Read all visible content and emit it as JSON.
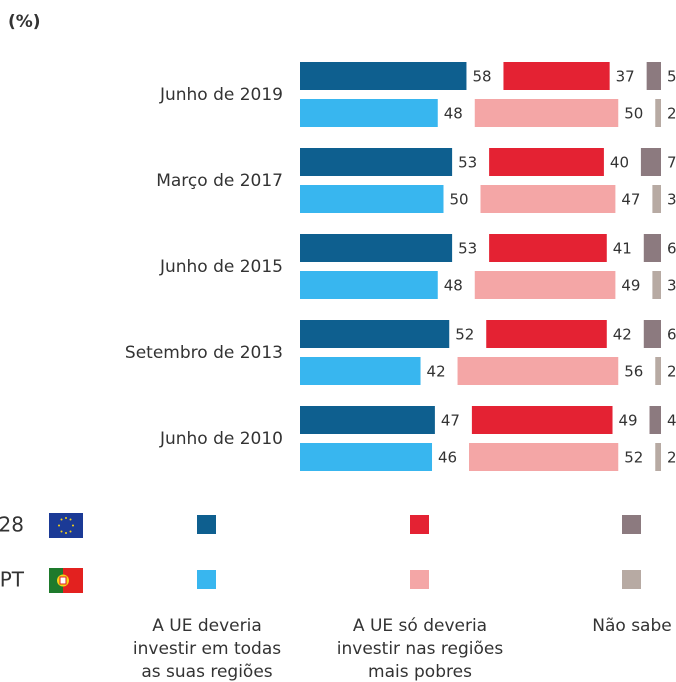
{
  "chart_data": {
    "type": "bar",
    "unit_label": "(%)",
    "categories": [
      "Junho de 2019",
      "Março de 2017",
      "Junho de 2015",
      "Setembro de 2013",
      "Junho de 2010"
    ],
    "groups": [
      {
        "name": "28",
        "series": [
          {
            "color": "#0e5f8f",
            "values": [
              58,
              53,
              53,
              52,
              47
            ]
          },
          {
            "color": "#e42233",
            "values": [
              37,
              40,
              41,
              42,
              49
            ]
          },
          {
            "color": "#8c7a7f",
            "values": [
              5,
              7,
              6,
              6,
              4
            ]
          }
        ]
      },
      {
        "name": "PT",
        "series": [
          {
            "color": "#38b6ef",
            "values": [
              48,
              50,
              48,
              42,
              46
            ]
          },
          {
            "color": "#f4a6a6",
            "values": [
              50,
              47,
              49,
              56,
              52
            ]
          },
          {
            "color": "#b7aaa3",
            "values": [
              2,
              3,
              3,
              2,
              2
            ]
          }
        ]
      }
    ],
    "answers": [
      {
        "lines": [
          "A UE deveria",
          "investir em todas",
          "as suas regiões"
        ]
      },
      {
        "lines": [
          "A UE só deveria",
          "investir nas regiões",
          "mais pobres"
        ]
      },
      {
        "lines": [
          "Não sabe"
        ]
      }
    ]
  }
}
